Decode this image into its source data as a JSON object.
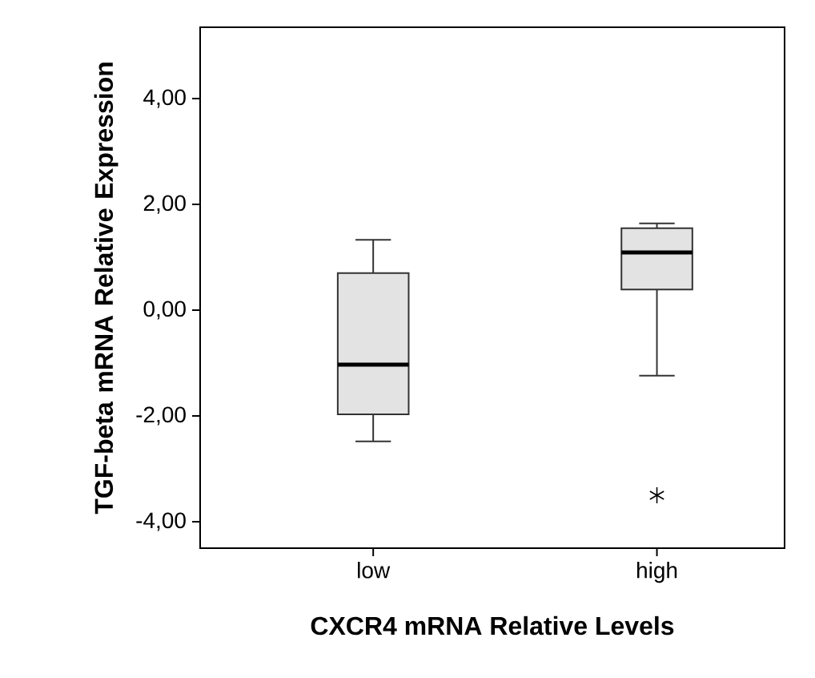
{
  "chart_data": {
    "type": "box",
    "xlabel": "CXCR4 mRNA Relative Levels",
    "ylabel": "TGF-beta mRNA Relative Expression",
    "categories": [
      "low",
      "high"
    ],
    "color": "#e3e3e3",
    "boxes": [
      {
        "low": -2.48,
        "q1": -1.97,
        "median": -1.03,
        "q3": 0.7,
        "high": 1.33
      },
      {
        "low": -1.24,
        "q1": 0.39,
        "median": 1.09,
        "q3": 1.55,
        "high": 1.64,
        "outliers": [
          -3.5
        ]
      }
    ],
    "ylim": [
      -4.5,
      5.35
    ],
    "yticks": [
      {
        "value": -4,
        "label": "-4,00"
      },
      {
        "value": -2,
        "label": "-2,00"
      },
      {
        "value": 0,
        "label": "0,00"
      },
      {
        "value": 2,
        "label": "2,00"
      },
      {
        "value": 4,
        "label": "4,00"
      }
    ]
  }
}
